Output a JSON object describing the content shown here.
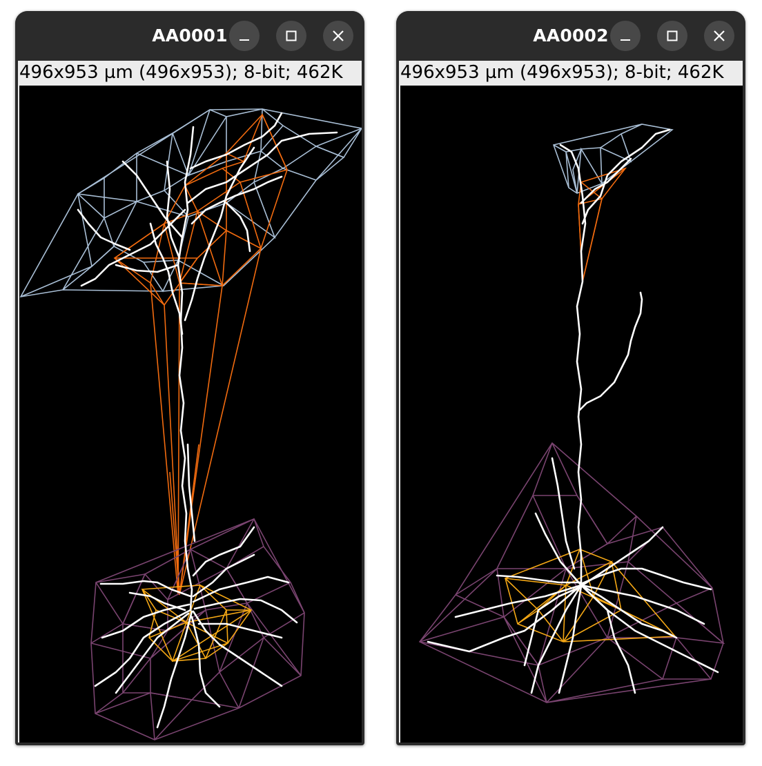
{
  "windows": [
    {
      "title": "AA0001",
      "status": "496x953 µm (496x953); 8-bit; 462K",
      "controls": [
        "minimize-icon",
        "maximize-icon",
        "close-icon"
      ]
    },
    {
      "title": "AA0002",
      "status": "496x953 µm (496x953); 8-bit; 462K",
      "controls": [
        "minimize-icon",
        "maximize-icon",
        "close-icon"
      ]
    }
  ],
  "colors": {
    "titlebar": "#2b2b2b",
    "button": "#484848",
    "canvas": "#000000",
    "neuron_trace": "#ffffff",
    "apical_outer_hull": "#a9bfd6",
    "apical_inner_hull": "#f26b0f",
    "basal_outer_hull": "#7a4470",
    "basal_inner_hull": "#f5a815"
  }
}
